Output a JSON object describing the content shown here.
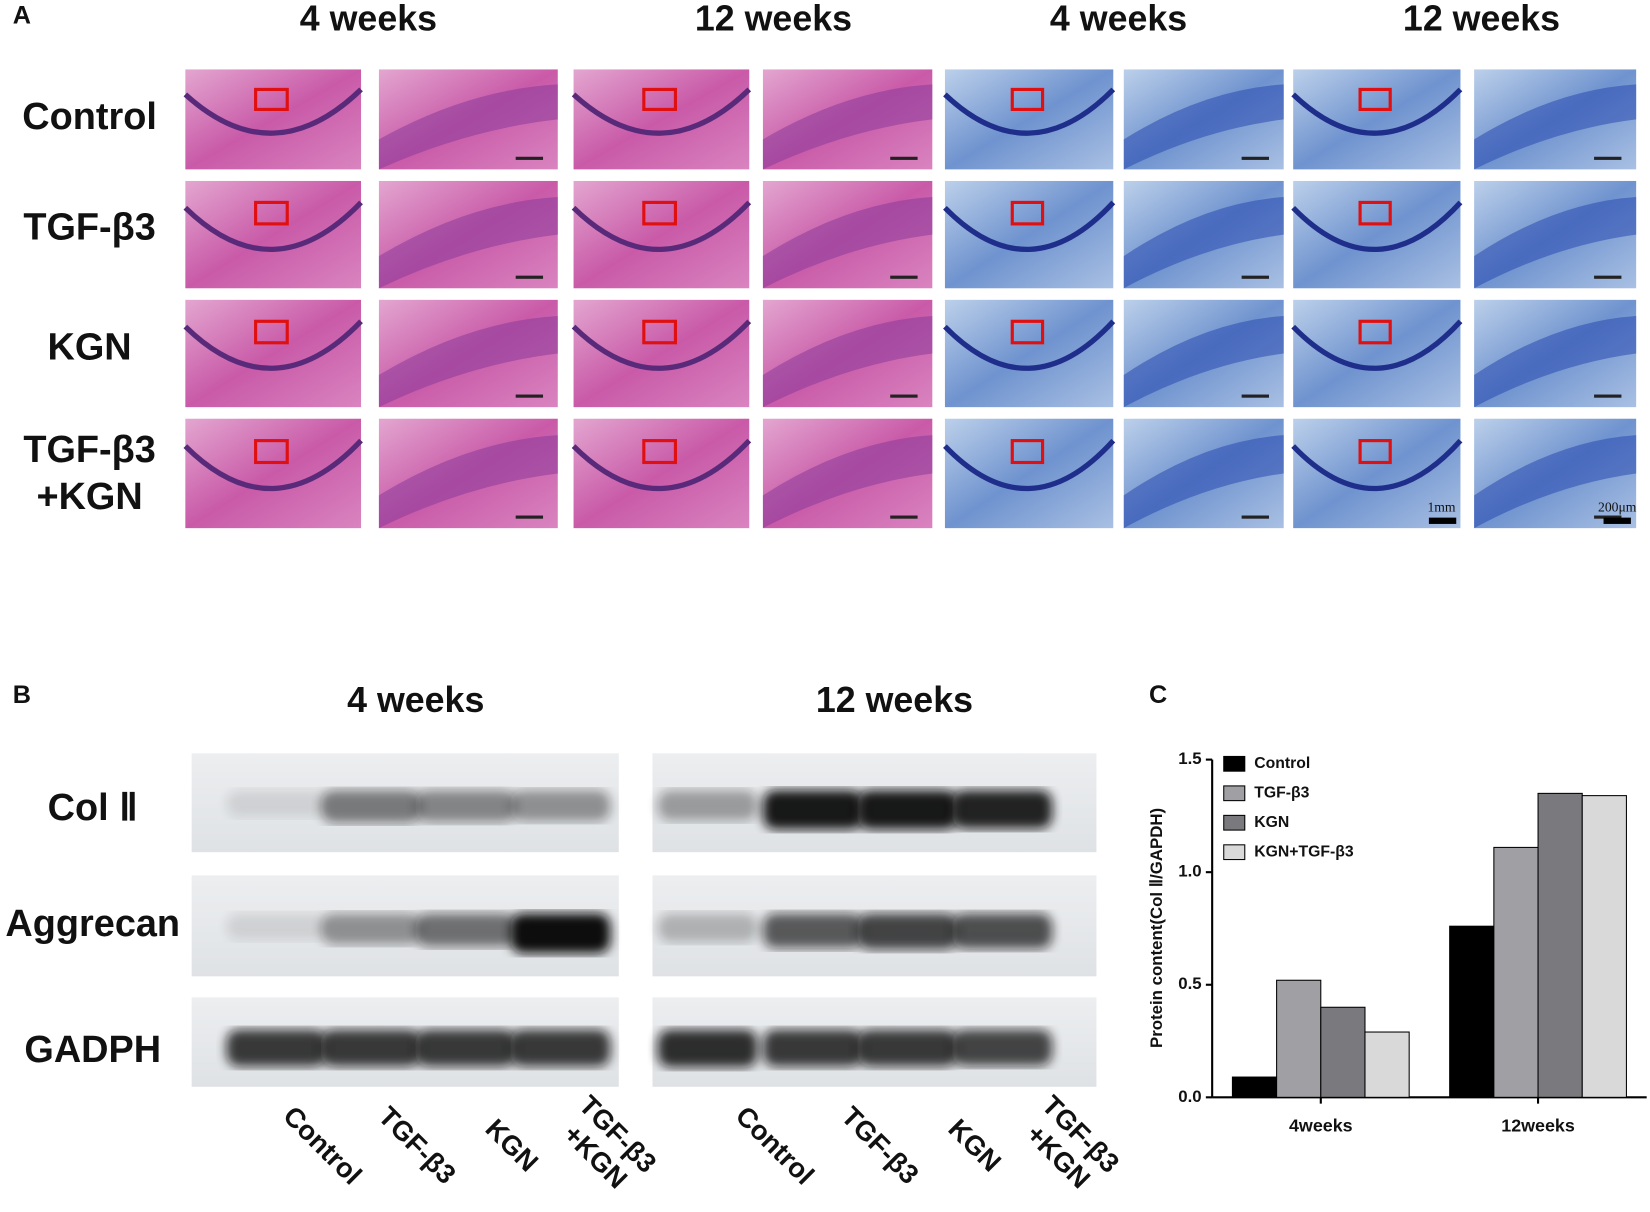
{
  "panel_a": {
    "label": "A",
    "column_headers": [
      "4 weeks",
      "12 weeks",
      "4 weeks",
      "12 weeks"
    ],
    "row_labels": [
      [
        "Control"
      ],
      [
        "TGF-β3"
      ],
      [
        "KGN"
      ],
      [
        "TGF-β3",
        "+KGN"
      ]
    ],
    "scale_bars": [
      "1mm",
      "200μm"
    ]
  },
  "panel_b": {
    "label": "B",
    "groups": [
      {
        "header": "4 weeks",
        "lanes": [
          [
            "Control"
          ],
          [
            "TGF-β3"
          ],
          [
            "KGN"
          ],
          [
            "TGF-β3",
            "+KGN"
          ]
        ]
      },
      {
        "header": "12 weeks",
        "lanes": [
          [
            "Control"
          ],
          [
            "TGF-β3"
          ],
          [
            "KGN"
          ],
          [
            "TGF-β3",
            "+KGN"
          ]
        ]
      }
    ],
    "row_labels": [
      "Col Ⅱ",
      "Aggrecan",
      "GADPH"
    ]
  },
  "panel_c": {
    "label": "C"
  },
  "chart_data": {
    "type": "bar",
    "y_label": "Protein content(Col Ⅱ/GAPDH)",
    "categories": [
      "4weeks",
      "12weeks"
    ],
    "series": [
      {
        "name": "Control",
        "color": "#000000",
        "values": [
          0.09,
          0.76
        ]
      },
      {
        "name": "TGF-β3",
        "color": "#a0a0a4",
        "values": [
          0.52,
          1.11
        ]
      },
      {
        "name": "KGN",
        "color": "#7a7a7e",
        "values": [
          0.4,
          1.35
        ]
      },
      {
        "name": "KGN+TGF-β3",
        "color": "#d9d9d9",
        "values": [
          0.29,
          1.34
        ]
      }
    ],
    "ylim": [
      0,
      1.5
    ],
    "yticks": [
      {
        "value": 0,
        "label": "0.0"
      },
      0.5,
      {
        "value": 1,
        "label": "1.0"
      },
      1.5
    ],
    "legend": "upper left"
  }
}
